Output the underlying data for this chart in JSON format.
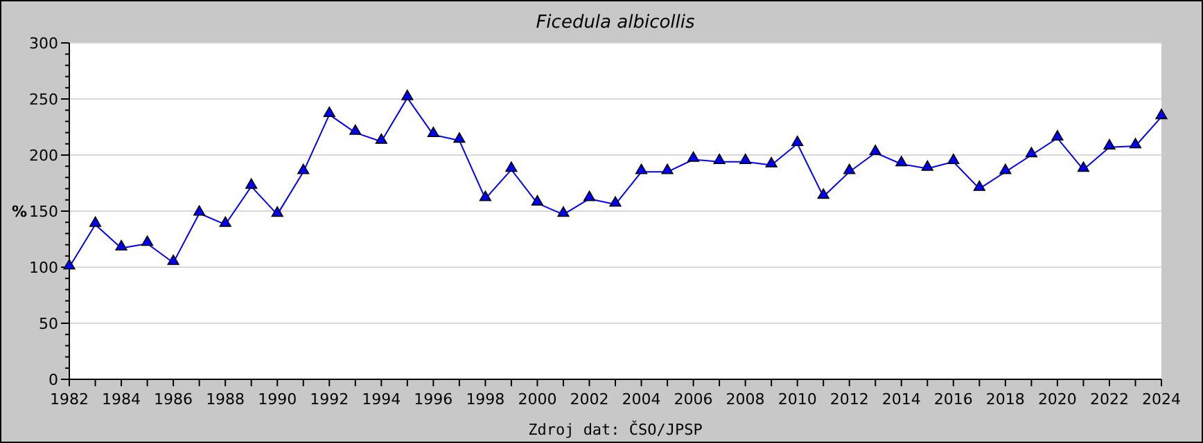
{
  "chart_data": {
    "type": "line",
    "title": "Ficedula albicollis",
    "ylabel": "%",
    "annotations": [
      "Zdroj dat: ČSO/JPSP"
    ],
    "x": [
      1982,
      1983,
      1984,
      1985,
      1986,
      1987,
      1988,
      1989,
      1990,
      1991,
      1992,
      1993,
      1994,
      1995,
      1996,
      1997,
      1998,
      1999,
      2000,
      2001,
      2002,
      2003,
      2004,
      2005,
      2006,
      2007,
      2008,
      2009,
      2010,
      2011,
      2012,
      2013,
      2014,
      2015,
      2016,
      2017,
      2018,
      2019,
      2020,
      2021,
      2022,
      2023,
      2024
    ],
    "series": [
      {
        "color": "#0000ff",
        "values": [
          100,
          138,
          117,
          121,
          104,
          148,
          138,
          172,
          147,
          185,
          236,
          220,
          212,
          251,
          218,
          213,
          161,
          187,
          157,
          147,
          161,
          156,
          185,
          185,
          196,
          194,
          194,
          191,
          210,
          163,
          185,
          202,
          192,
          188,
          194,
          170,
          185,
          200,
          215,
          187,
          207,
          208,
          234
        ]
      }
    ],
    "xlim": [
      1982,
      2024
    ],
    "xticks": [
      1982,
      {
        "value": 1983,
        "label": null
      },
      1984,
      {
        "value": 1985,
        "label": null
      },
      1986,
      {
        "value": 1987,
        "label": null
      },
      1988,
      {
        "value": 1989,
        "label": null
      },
      1990,
      {
        "value": 1991,
        "label": null
      },
      1992,
      {
        "value": 1993,
        "label": null
      },
      1994,
      {
        "value": 1995,
        "label": null
      },
      1996,
      {
        "value": 1997,
        "label": null
      },
      1998,
      {
        "value": 1999,
        "label": null
      },
      2000,
      {
        "value": 2001,
        "label": null
      },
      2002,
      {
        "value": 2003,
        "label": null
      },
      2004,
      {
        "value": 2005,
        "label": null
      },
      2006,
      {
        "value": 2007,
        "label": null
      },
      2008,
      {
        "value": 2009,
        "label": null
      },
      2010,
      {
        "value": 2011,
        "label": null
      },
      2012,
      {
        "value": 2013,
        "label": null
      },
      2014,
      {
        "value": 2015,
        "label": null
      },
      2016,
      {
        "value": 2017,
        "label": null
      },
      2018,
      {
        "value": 2019,
        "label": null
      },
      2020,
      {
        "value": 2021,
        "label": null
      },
      2022,
      {
        "value": 2023,
        "label": null
      },
      2024
    ],
    "ylim": [
      0,
      300
    ],
    "yticks": [
      0,
      50,
      100,
      150,
      200,
      250,
      300
    ],
    "grid": "y",
    "marker": "triangle",
    "line_style": "solid"
  }
}
